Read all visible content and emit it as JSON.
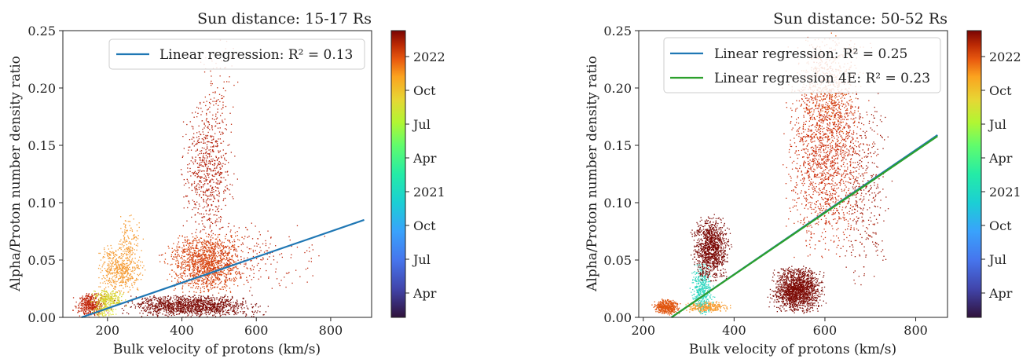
{
  "chart_data": [
    {
      "type": "scatter",
      "title": "Sun distance: 15-17 Rs",
      "xlabel": "Bulk velocity of protons (km/s)",
      "ylabel": "Alpha/Proton number density ratio",
      "xlim": [
        80,
        910
      ],
      "ylim": [
        0,
        0.25
      ],
      "xticks": [
        "200",
        "400",
        "600",
        "800"
      ],
      "yticks": [
        "0.00",
        "0.05",
        "0.10",
        "0.15",
        "0.20",
        "0.25"
      ],
      "grid": false,
      "legend_position": "upper right",
      "legend": [
        {
          "label": "Linear regression: R² = 0.13",
          "color": "#1f77b4"
        }
      ],
      "regression_lines": [
        {
          "label": "Linear regression: R² = 0.13",
          "color": "#1f77b4",
          "x": [
            130,
            890
          ],
          "y": [
            0.0,
            0.085
          ]
        }
      ],
      "colorbar": {
        "colormap": "turbo",
        "ticks": [
          "Apr",
          "Jul",
          "Oct",
          "2021",
          "Apr",
          "Jul",
          "Oct",
          "2022"
        ]
      },
      "clusters": [
        {
          "x": [
            100,
            210
          ],
          "y": [
            0.0,
            0.022
          ],
          "color": "#c1260b",
          "density": 420
        },
        {
          "x": [
            140,
            260
          ],
          "y": [
            0.008,
            0.024
          ],
          "color": "#d6d12a",
          "density": 260
        },
        {
          "x": [
            150,
            230
          ],
          "y": [
            0.0,
            0.012
          ],
          "color": "#e3e84a",
          "density": 120
        },
        {
          "x": [
            160,
            310
          ],
          "y": [
            0.02,
            0.065
          ],
          "color": "#f59b32",
          "density": 520
        },
        {
          "x": [
            220,
            300
          ],
          "y": [
            0.05,
            0.09
          ],
          "color": "#f59b32",
          "density": 110
        },
        {
          "x": [
            330,
            600
          ],
          "y": [
            0.02,
            0.075
          ],
          "color": "#d8430c",
          "density": 1300
        },
        {
          "x": [
            380,
            560
          ],
          "y": [
            0.07,
            0.19
          ],
          "color": "#b5200a",
          "density": 650
        },
        {
          "x": [
            430,
            570
          ],
          "y": [
            0.15,
            0.25
          ],
          "color": "#c12a0b",
          "density": 90
        },
        {
          "x": [
            200,
            650
          ],
          "y": [
            0.0,
            0.02
          ],
          "color": "#7c0b05",
          "density": 1300
        },
        {
          "x": [
            300,
            820
          ],
          "y": [
            0.02,
            0.09
          ],
          "color": "#bd250a",
          "density": 260
        }
      ]
    },
    {
      "type": "scatter",
      "title": "Sun distance: 50-52 Rs",
      "xlabel": "Bulk velocity of protons (km/s)",
      "ylabel": "Alpha/Proton number density ratio",
      "xlim": [
        190,
        870
      ],
      "ylim": [
        0,
        0.25
      ],
      "xticks": [
        "200",
        "400",
        "600",
        "800"
      ],
      "yticks": [
        "0.00",
        "0.05",
        "0.10",
        "0.15",
        "0.20",
        "0.25"
      ],
      "grid": false,
      "legend_position": "upper right",
      "legend": [
        {
          "label": "Linear regression: R² = 0.25",
          "color": "#1f77b4"
        },
        {
          "label": "Linear regression 4E: R² = 0.23",
          "color": "#2ca02c"
        }
      ],
      "regression_lines": [
        {
          "label": "Linear regression: R² = 0.25",
          "color": "#1f77b4",
          "x": [
            262,
            848
          ],
          "y": [
            0.0,
            0.159
          ]
        },
        {
          "label": "Linear regression 4E: R² = 0.23",
          "color": "#2ca02c",
          "x": [
            262,
            848
          ],
          "y": [
            0.0,
            0.158
          ]
        }
      ],
      "colorbar": {
        "colormap": "turbo",
        "ticks": [
          "Apr",
          "Jul",
          "Oct",
          "2021",
          "Apr",
          "Jul",
          "Oct",
          "2022"
        ]
      },
      "clusters": [
        {
          "x": [
            215,
            290
          ],
          "y": [
            0.002,
            0.016
          ],
          "color": "#e0550f",
          "density": 420
        },
        {
          "x": [
            280,
            400
          ],
          "y": [
            0.004,
            0.014
          ],
          "color": "#f79a2c",
          "density": 300
        },
        {
          "x": [
            300,
            360
          ],
          "y": [
            0.0,
            0.05
          ],
          "color": "#31d7c0",
          "density": 420
        },
        {
          "x": [
            300,
            400
          ],
          "y": [
            0.03,
            0.09
          ],
          "color": "#7a0804",
          "density": 1100
        },
        {
          "x": [
            470,
            610
          ],
          "y": [
            0.003,
            0.045
          ],
          "color": "#7c0b05",
          "density": 1600
        },
        {
          "x": [
            490,
            720
          ],
          "y": [
            0.05,
            0.25
          ],
          "color": "#cc2e0c",
          "density": 1800
        },
        {
          "x": [
            520,
            700
          ],
          "y": [
            0.15,
            0.25
          ],
          "color": "#e2580f",
          "density": 350
        },
        {
          "x": [
            620,
            760
          ],
          "y": [
            0.02,
            0.2
          ],
          "color": "#9b1406",
          "density": 320
        }
      ]
    }
  ]
}
